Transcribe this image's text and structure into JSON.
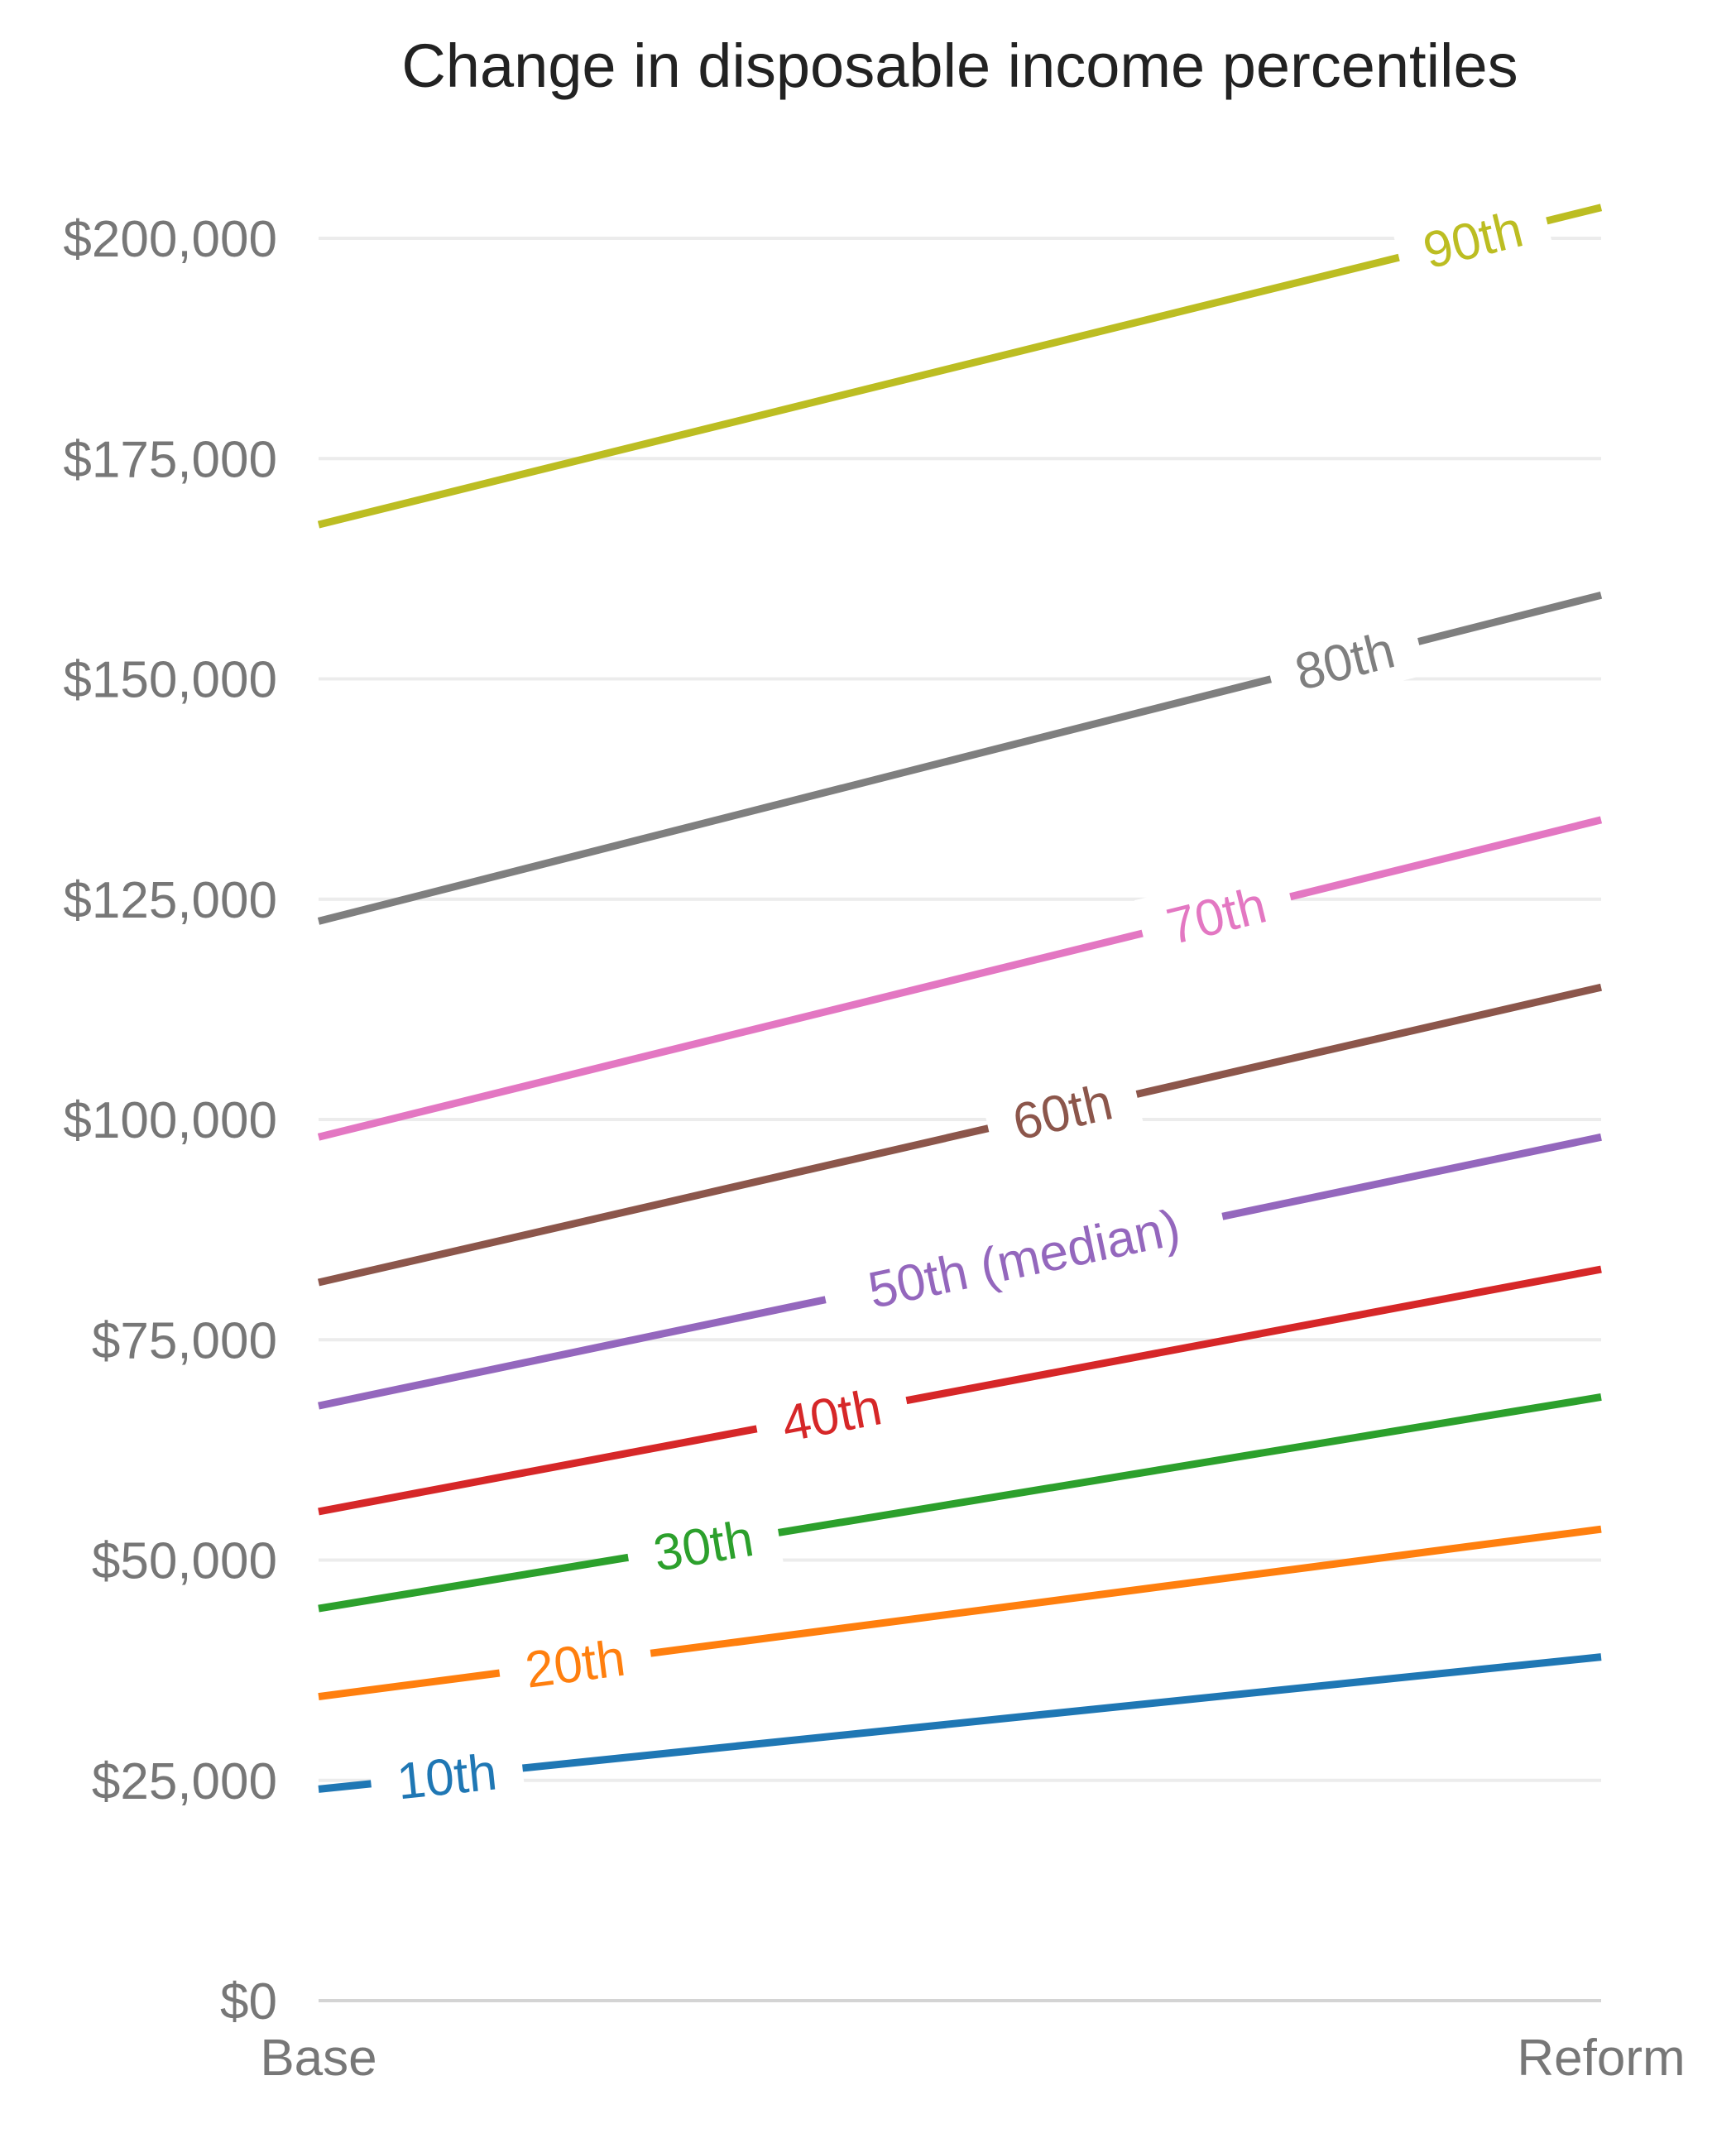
{
  "chart_data": {
    "type": "line",
    "title": "Change in disposable income percentiles",
    "xlabel": "",
    "ylabel": "",
    "categories": [
      "Base",
      "Reform"
    ],
    "yticks": [
      "$0",
      "$25,000",
      "$50,000",
      "$75,000",
      "$100,000",
      "$125,000",
      "$150,000",
      "$175,000",
      "$200,000"
    ],
    "ylim": [
      0,
      200000
    ],
    "grid": true,
    "legend": "none (inline line labels)",
    "series": [
      {
        "name": "10th",
        "values": [
          24000,
          39000
        ],
        "color": "#1f77b4"
      },
      {
        "name": "20th",
        "values": [
          34500,
          53500
        ],
        "color": "#ff7f0e"
      },
      {
        "name": "30th",
        "values": [
          44500,
          68500
        ],
        "color": "#2ca02c"
      },
      {
        "name": "40th",
        "values": [
          55500,
          83000
        ],
        "color": "#d62728"
      },
      {
        "name": "50th (median)",
        "values": [
          67500,
          98000
        ],
        "color": "#9467bd"
      },
      {
        "name": "60th",
        "values": [
          81500,
          115000
        ],
        "color": "#8c564b"
      },
      {
        "name": "70th",
        "values": [
          98000,
          134000
        ],
        "color": "#e377c2"
      },
      {
        "name": "80th",
        "values": [
          122500,
          159500
        ],
        "color": "#7f7f7f"
      },
      {
        "name": "90th",
        "values": [
          167500,
          203500
        ],
        "color": "#bcbd22"
      }
    ]
  }
}
